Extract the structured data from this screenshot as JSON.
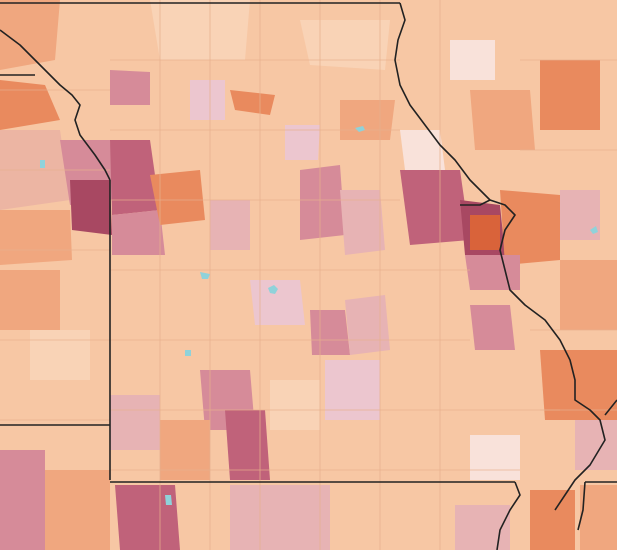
{
  "map": {
    "type": "choropleth",
    "palette": {
      "base": "#f7c7a4",
      "light": "#f9d3b6",
      "mid_orange": "#f0a77f",
      "orange": "#e98a5e",
      "dark_orange": "#d9633a",
      "pink_light": "#ecc6cf",
      "pink": "#e7b3b4",
      "mauve": "#d68b99",
      "mauve_dark": "#c0627a",
      "wine": "#a84862",
      "water": "#8fd2da",
      "border": "#222222",
      "tract_line": "#e7b08d"
    },
    "border_features": [
      "state-boundary",
      "river-boundary"
    ]
  }
}
